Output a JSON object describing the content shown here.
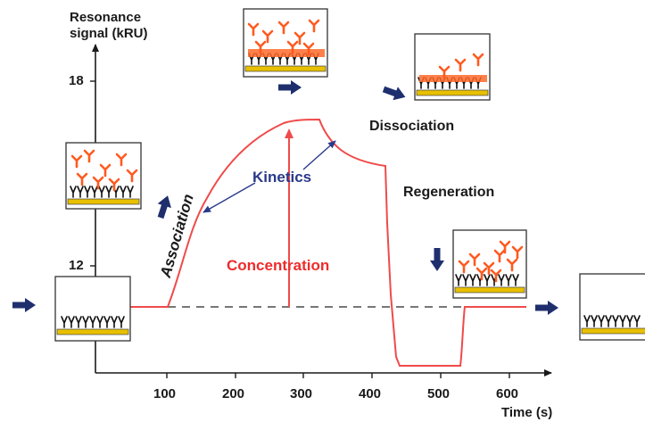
{
  "axes": {
    "y_title_line1": "Resonance",
    "y_title_line2": "signal (kRU)",
    "x_title": "Time  (s)",
    "y_ticks": [
      "18",
      "12"
    ],
    "x_ticks": [
      "100",
      "200",
      "300",
      "400",
      "500",
      "600"
    ]
  },
  "labels": {
    "association": "Association",
    "kinetics": "Kinetics",
    "concentration": "Concentration",
    "dissociation": "Dissociation",
    "regeneration": "Regeneration"
  },
  "colors": {
    "curve": "#f04a4a",
    "arrow_navy": "#1f2f6e",
    "gold_layer": "#e8c000",
    "analyte": "#ff5a1f"
  }
}
